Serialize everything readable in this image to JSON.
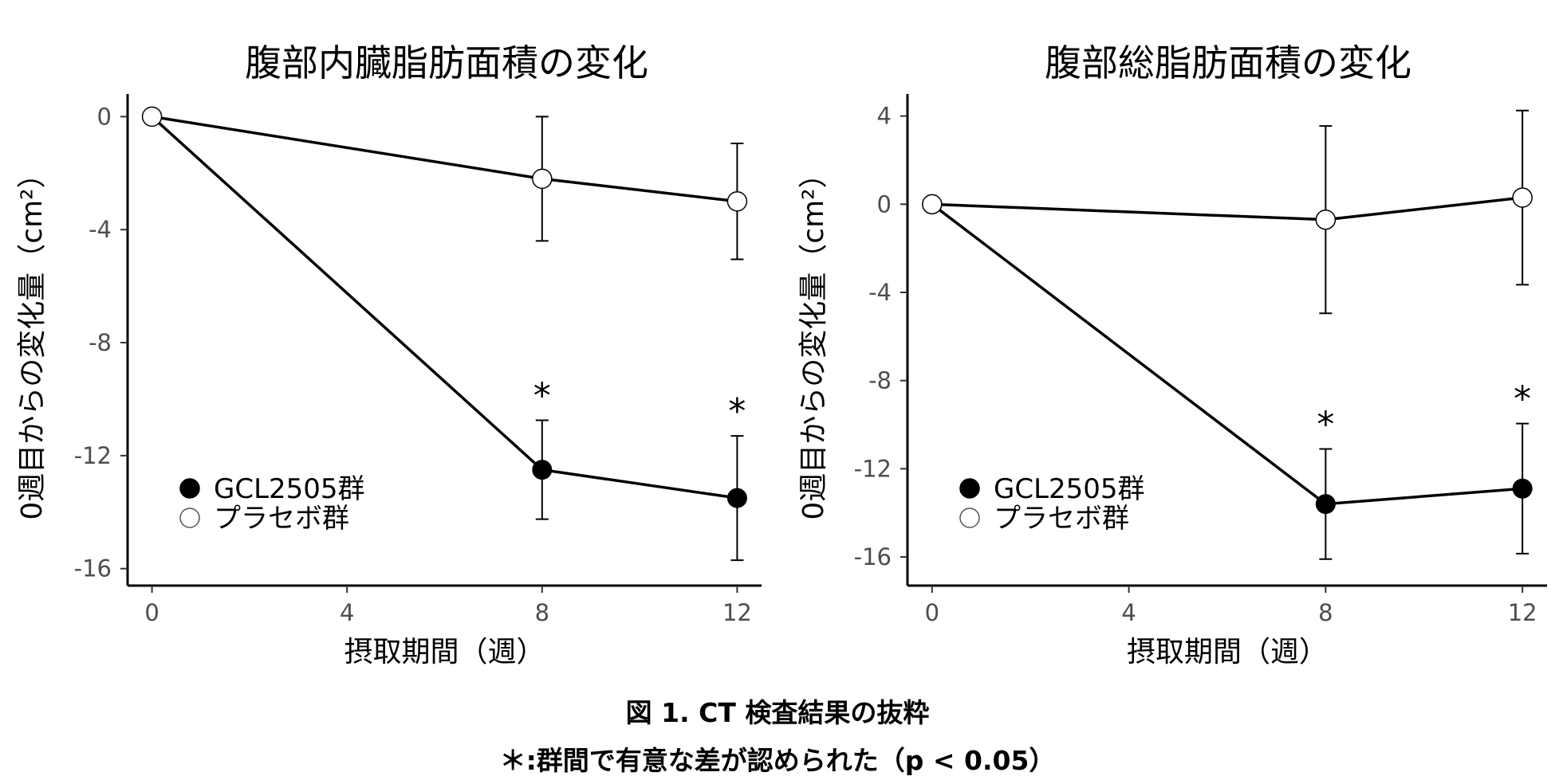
{
  "chart_data": [
    {
      "type": "line",
      "title": "腹部内臓脂肪面積の変化",
      "xlabel": "摂取期間（週）",
      "ylabel": "0週目からの変化量（cm²）",
      "xlim": [
        -0.5,
        12.5
      ],
      "ylim": [
        -16.6,
        0.8
      ],
      "xticks": [
        0,
        4,
        8,
        12
      ],
      "xtick_labels": [
        "0",
        "4",
        "8",
        "12"
      ],
      "yticks": [
        0,
        -4,
        -8,
        -12,
        -16
      ],
      "ytick_labels": [
        "0",
        "-4",
        "-8",
        "-12",
        "-16"
      ],
      "x": [
        0,
        8,
        12
      ],
      "series": [
        {
          "name": "GCL2505群",
          "marker": "filled",
          "values": [
            0,
            -12.5,
            -13.5
          ],
          "errors": [
            0,
            1.75,
            2.2
          ],
          "significance": [
            "",
            "*",
            "*"
          ]
        },
        {
          "name": "プラセボ群",
          "marker": "open",
          "values": [
            0,
            -2.2,
            -3.0
          ],
          "errors": [
            0,
            2.2,
            2.05
          ],
          "significance": [
            "",
            "",
            ""
          ]
        }
      ],
      "legend": "bottom-left"
    },
    {
      "type": "line",
      "title": "腹部総脂肪面積の変化",
      "xlabel": "摂取期間（週）",
      "ylabel": "0週目からの変化量（cm²）",
      "xlim": [
        -0.5,
        12.5
      ],
      "ylim": [
        -17.3,
        5.0
      ],
      "xticks": [
        0,
        4,
        8,
        12
      ],
      "xtick_labels": [
        "0",
        "4",
        "8",
        "12"
      ],
      "yticks": [
        4,
        0,
        -4,
        -8,
        -12,
        -16
      ],
      "ytick_labels": [
        "4",
        "0",
        "-4",
        "-8",
        "-12",
        "-16"
      ],
      "x": [
        0,
        8,
        12
      ],
      "series": [
        {
          "name": "GCL2505群",
          "marker": "filled",
          "values": [
            0,
            -13.6,
            -12.9
          ],
          "errors": [
            0,
            2.5,
            2.95
          ],
          "significance": [
            "",
            "*",
            "*"
          ]
        },
        {
          "name": "プラセボ群",
          "marker": "open",
          "values": [
            0,
            -0.7,
            0.3
          ],
          "errors": [
            0,
            4.25,
            3.95
          ],
          "significance": [
            "",
            "",
            ""
          ]
        }
      ],
      "legend": "bottom-left"
    }
  ],
  "caption": {
    "line1": "図 1. CT 検査結果の抜粋",
    "line2": "＊:群間で有意な差が認められた（p < 0.05）"
  }
}
